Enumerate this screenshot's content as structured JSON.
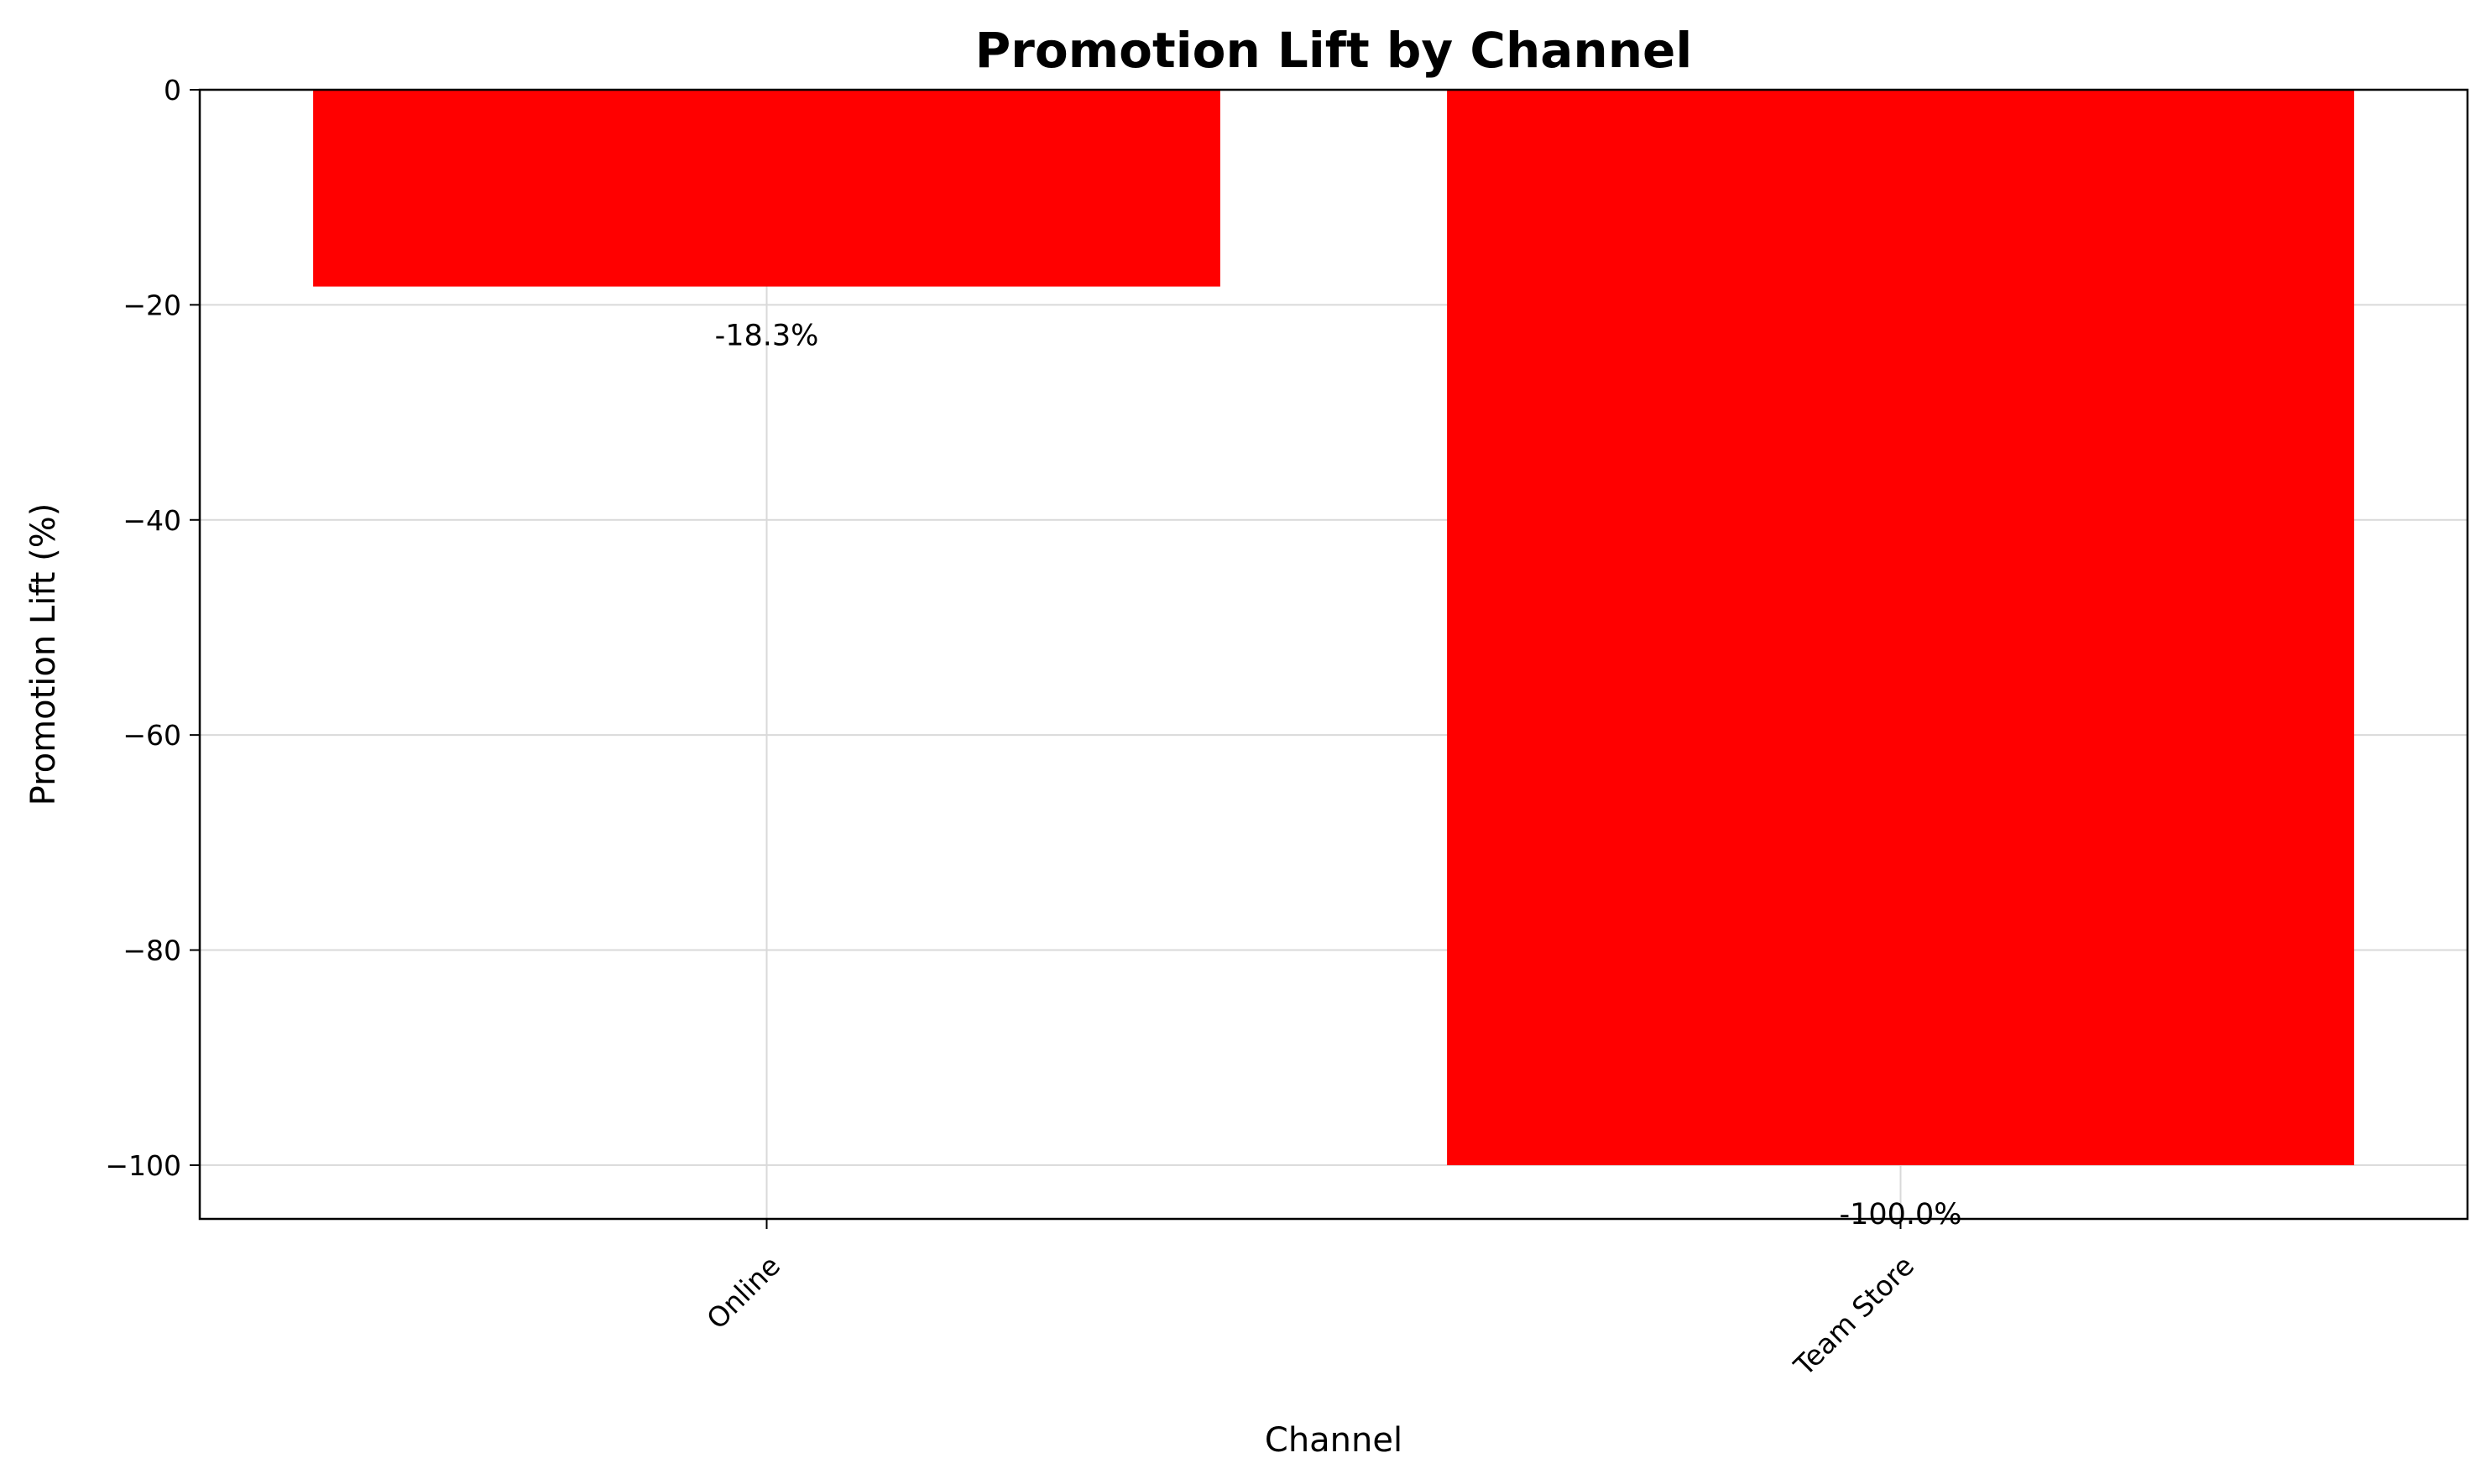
{
  "chart_data": {
    "type": "bar",
    "title": "Promotion Lift by Channel",
    "xlabel": "Channel",
    "ylabel": "Promotion Lift (%)",
    "categories": [
      "Online",
      "Team Store"
    ],
    "values": [
      -18.3,
      -100.0
    ],
    "data_labels": [
      "-18.3%",
      "-100.0%"
    ],
    "ylim": [
      -105,
      0
    ],
    "yticks": [
      0,
      -20,
      -40,
      -60,
      -80,
      -100
    ],
    "ytick_labels": [
      "0",
      "−20",
      "−40",
      "−60",
      "−80",
      "−100"
    ],
    "grid": true,
    "bar_color": "#ff0000",
    "x_tick_rotation": "45 degrees"
  }
}
